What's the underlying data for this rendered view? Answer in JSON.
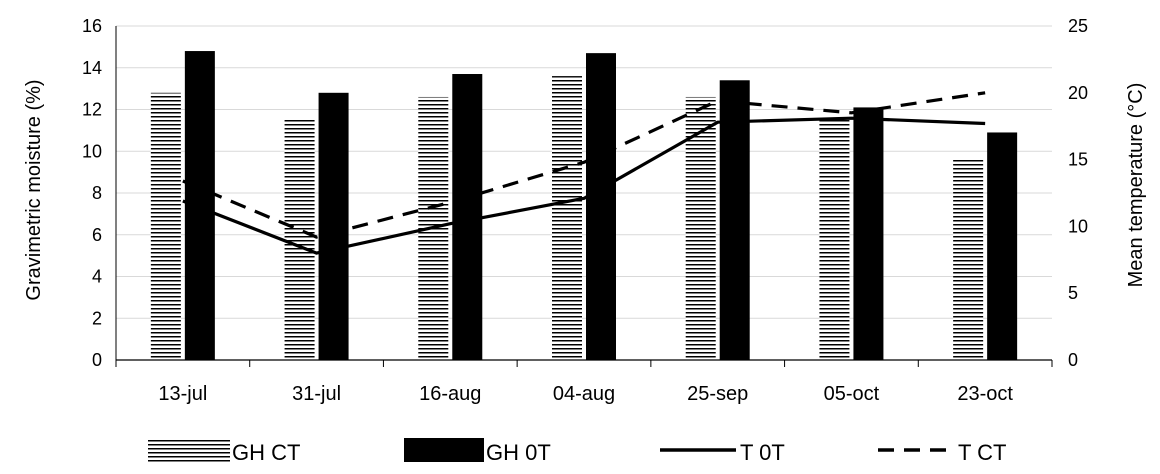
{
  "chart_data": {
    "type": "bar",
    "categories": [
      "13-jul",
      "31-jul",
      "16-aug",
      "04-aug",
      "25-sep",
      "05-oct",
      "23-oct"
    ],
    "ylabel": "Gravimetric moisture (%)",
    "ylabel_right": "Mean temperature (°C)",
    "ylim": [
      0,
      16
    ],
    "yticks": [
      "0",
      "2",
      "4",
      "6",
      "8",
      "10",
      "12",
      "14",
      "16"
    ],
    "ylim_right": [
      0,
      25
    ],
    "yticks_right": [
      "0",
      "5",
      "10",
      "15",
      "20",
      "25"
    ],
    "grid": true,
    "legend_position": "bottom",
    "series": [
      {
        "name": "GH CT",
        "kind": "bar",
        "style": "horizontal-hatch",
        "axis": "left",
        "values": [
          12.8,
          11.5,
          12.6,
          13.6,
          12.6,
          11.5,
          9.7
        ]
      },
      {
        "name": "GH 0T",
        "kind": "bar",
        "style": "solid",
        "color": "#000000",
        "axis": "left",
        "values": [
          14.8,
          12.8,
          13.7,
          14.7,
          13.4,
          12.1,
          10.9
        ]
      },
      {
        "name": "T 0T",
        "kind": "line",
        "style": "solid",
        "color": "#000000",
        "axis": "right",
        "values": [
          11.9,
          8.0,
          10.2,
          12.1,
          17.8,
          18.1,
          17.7
        ]
      },
      {
        "name": "T CT",
        "kind": "line",
        "style": "dashed",
        "color": "#000000",
        "axis": "right",
        "values": [
          13.4,
          9.2,
          11.8,
          14.8,
          19.4,
          18.5,
          20.0
        ]
      }
    ]
  }
}
